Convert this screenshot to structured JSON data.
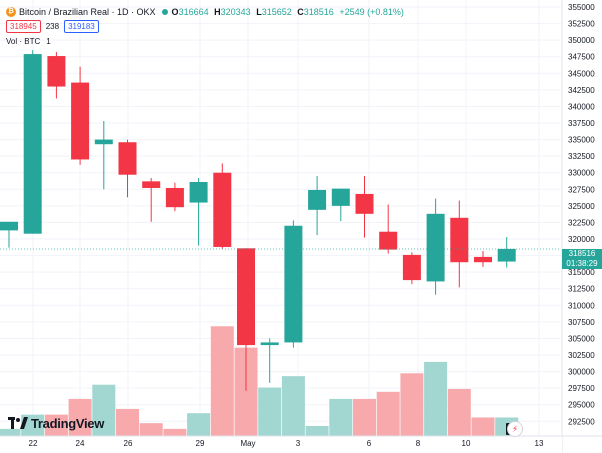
{
  "header": {
    "symbol_title": "Bitcoin / Brazilian Real · 1D · OKX",
    "coin_glyph": "₿",
    "ohlc": [
      {
        "key": "O",
        "value": "316664"
      },
      {
        "key": "H",
        "value": "320343"
      },
      {
        "key": "L",
        "value": "315652"
      },
      {
        "key": "C",
        "value": "318516"
      }
    ],
    "change": "+2549 (+0.81%)",
    "bid": "318945",
    "spread": "238",
    "ask": "319183",
    "volume_label": "Vol · BTC",
    "volume_value": "1"
  },
  "last_price": {
    "price": "318516",
    "countdown": "01:38:29"
  },
  "logo_text": "TradingView",
  "page_badge": "1",
  "colors": {
    "up": "#26a69a",
    "down": "#f23645",
    "vol_up": "#a1d6d1",
    "vol_down": "#f7a9ac",
    "grid": "#f0f3fa"
  },
  "chart_data": {
    "type": "candlestick",
    "y_axis": {
      "min": 292500,
      "max": 355000,
      "step": 2500,
      "position": "right"
    },
    "x_ticks": [
      "22",
      "24",
      "26",
      "29",
      "May",
      "3",
      "6",
      "8",
      "10",
      "13"
    ],
    "grid": true,
    "candles": [
      {
        "open": 321300,
        "high": 322300,
        "low": 318700,
        "close": 322600
      },
      {
        "open": 320800,
        "high": 348500,
        "low": 320800,
        "close": 347900
      },
      {
        "open": 347600,
        "high": 348200,
        "low": 341200,
        "close": 343000
      },
      {
        "open": 343600,
        "high": 346000,
        "low": 331200,
        "close": 332000
      },
      {
        "open": 334300,
        "high": 337800,
        "low": 327500,
        "close": 335000
      },
      {
        "open": 334600,
        "high": 335000,
        "low": 326300,
        "close": 329700
      },
      {
        "open": 328700,
        "high": 329200,
        "low": 322600,
        "close": 327700
      },
      {
        "open": 327700,
        "high": 328500,
        "low": 324200,
        "close": 324800
      },
      {
        "open": 325500,
        "high": 329200,
        "low": 319000,
        "close": 328600
      },
      {
        "open": 330000,
        "high": 331400,
        "low": 318500,
        "close": 318800
      },
      {
        "open": 318600,
        "high": 318600,
        "low": 297100,
        "close": 304000
      },
      {
        "open": 304000,
        "high": 305000,
        "low": 298300,
        "close": 304400
      },
      {
        "open": 304400,
        "high": 322800,
        "low": 303600,
        "close": 322000
      },
      {
        "open": 324400,
        "high": 329500,
        "low": 320600,
        "close": 327400
      },
      {
        "open": 325000,
        "high": 327500,
        "low": 322700,
        "close": 327600
      },
      {
        "open": 326800,
        "high": 329500,
        "low": 320200,
        "close": 323800
      },
      {
        "open": 321100,
        "high": 325200,
        "low": 317800,
        "close": 318400
      },
      {
        "open": 317600,
        "high": 318000,
        "low": 313200,
        "close": 313800
      },
      {
        "open": 313600,
        "high": 326100,
        "low": 311600,
        "close": 323800
      },
      {
        "open": 323200,
        "high": 325800,
        "low": 312700,
        "close": 316500
      },
      {
        "open": 317300,
        "high": 318200,
        "low": 315800,
        "close": 316500
      },
      {
        "open": 316600,
        "high": 320300,
        "low": 315700,
        "close": 318500
      }
    ],
    "volumes": [
      {
        "value": 0.25,
        "up": true
      },
      {
        "value": 0.75,
        "up": true
      },
      {
        "value": 0.75,
        "up": false
      },
      {
        "value": 1.3,
        "up": false
      },
      {
        "value": 1.8,
        "up": true
      },
      {
        "value": 0.95,
        "up": false
      },
      {
        "value": 0.45,
        "up": false
      },
      {
        "value": 0.25,
        "up": false
      },
      {
        "value": 0.8,
        "up": true
      },
      {
        "value": 3.85,
        "up": false
      },
      {
        "value": 3.1,
        "up": false
      },
      {
        "value": 1.7,
        "up": true
      },
      {
        "value": 2.1,
        "up": true
      },
      {
        "value": 0.35,
        "up": true
      },
      {
        "value": 1.3,
        "up": true
      },
      {
        "value": 1.3,
        "up": false
      },
      {
        "value": 1.55,
        "up": false
      },
      {
        "value": 2.2,
        "up": false
      },
      {
        "value": 2.6,
        "up": true
      },
      {
        "value": 1.65,
        "up": false
      },
      {
        "value": 0.65,
        "up": false
      },
      {
        "value": 0.65,
        "up": true
      }
    ]
  }
}
